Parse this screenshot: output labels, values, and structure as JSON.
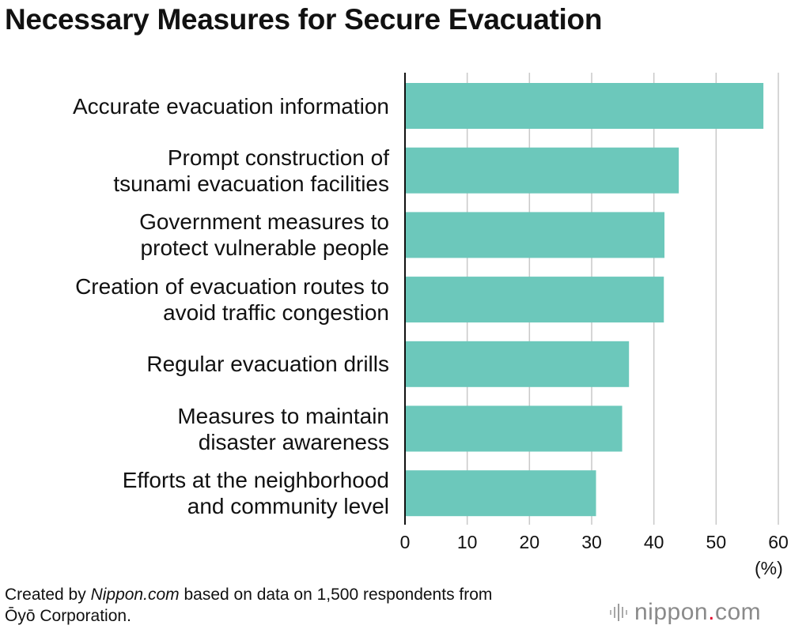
{
  "chart_data": {
    "type": "bar",
    "orientation": "horizontal",
    "title": "Necessary Measures for Secure Evacuation",
    "categories": [
      [
        "Accurate evacuation information"
      ],
      [
        "Prompt construction of",
        "tsunami evacuation facilities"
      ],
      [
        "Government measures to",
        "protect vulnerable people"
      ],
      [
        "Creation of evacuation routes to",
        "avoid traffic congestion"
      ],
      [
        "Regular evacuation drills"
      ],
      [
        "Measures to maintain",
        "disaster awareness"
      ],
      [
        "Efforts at the neighborhood",
        "and community level"
      ]
    ],
    "values": [
      57.6,
      44.0,
      41.7,
      41.6,
      36.0,
      34.9,
      30.7
    ],
    "xlim": [
      0,
      60
    ],
    "xticks": [
      "0",
      "10",
      "20",
      "30",
      "40",
      "50",
      "60"
    ],
    "xlabel": "(%)",
    "grid": true,
    "bar_color": "#6cc8bb"
  },
  "source": {
    "prefix": "Created by ",
    "publication": "Nippon.com",
    "suffix": " based on data on 1,500 respondents from",
    "line2": "Ōyō Corporation."
  },
  "logo": {
    "text_main": "nippon",
    "text_dot": ".",
    "text_end": "com"
  }
}
